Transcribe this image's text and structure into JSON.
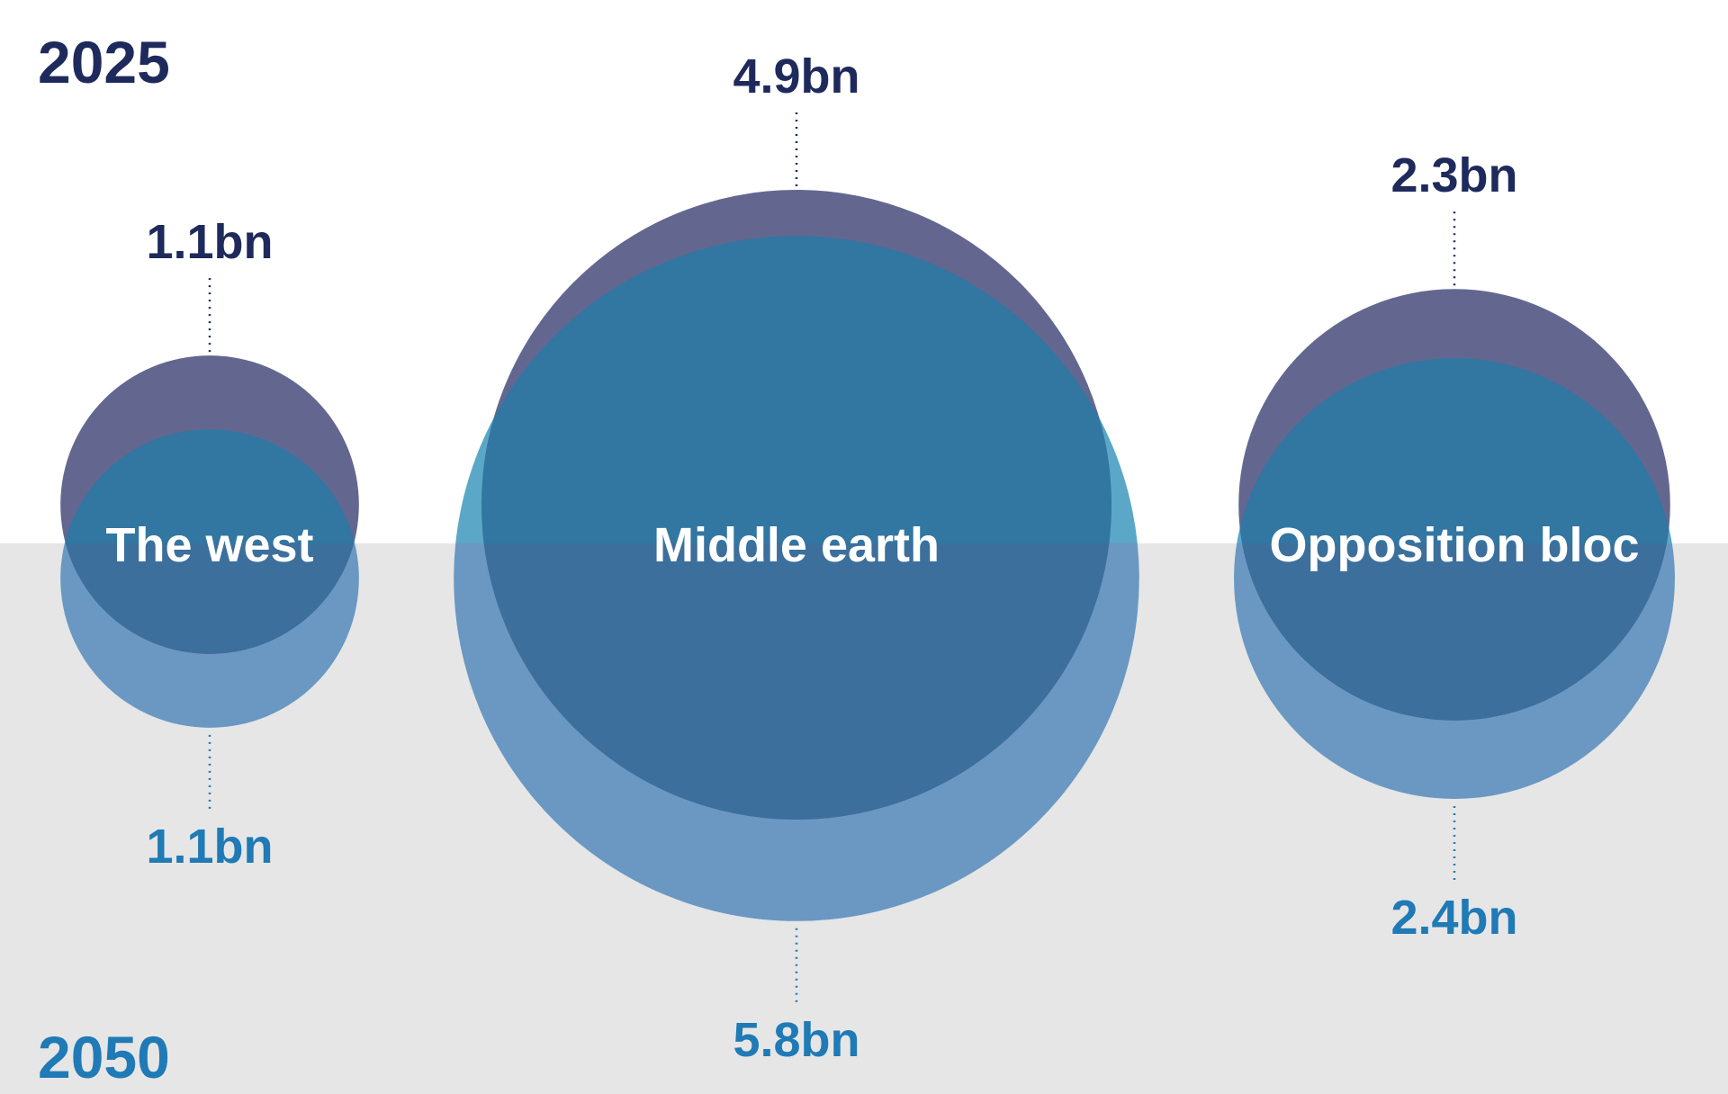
{
  "chart_data": {
    "type": "bubble",
    "unit": "bn",
    "years": [
      "2025",
      "2050"
    ],
    "categories": [
      "The west",
      "Middle earth",
      "Opposition bloc"
    ],
    "series": [
      {
        "name": "2025",
        "values": [
          1.1,
          4.9,
          2.3
        ],
        "labels": [
          "1.1bn",
          "4.9bn",
          "2.3bn"
        ]
      },
      {
        "name": "2050",
        "values": [
          1.1,
          5.8,
          2.4
        ],
        "labels": [
          "1.1bn",
          "5.8bn",
          "2.4bn"
        ]
      }
    ]
  },
  "colors": {
    "y2025_text": "#1f2a5c",
    "y2050_text": "#1f7ab5",
    "circle_2025": "#636790",
    "circle_2050_on_white": "#5ba7c8",
    "circle_2050_on_grey": "#6a98c3",
    "overlap_on_white": "#3276a2",
    "overlap_on_grey": "#3c6f9c",
    "grey_band": "#e6e6e6"
  }
}
